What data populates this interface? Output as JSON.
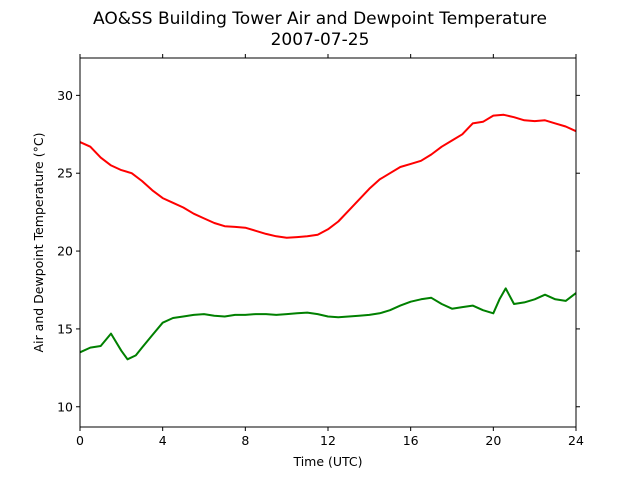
{
  "chart_data": {
    "type": "line",
    "title": "AO&SS Building Tower Air and Dewpoint Temperature",
    "subtitle": "2007-07-25",
    "xlabel": "Time (UTC)",
    "ylabel": "Air and Dewpoint Temperature (°C)",
    "xlim": [
      0,
      24
    ],
    "ylim": [
      8.7,
      32.4
    ],
    "xticks": [
      0,
      4,
      8,
      12,
      16,
      20,
      24
    ],
    "yticks": [
      10,
      15,
      20,
      25,
      30
    ],
    "grid": false,
    "legend": "none",
    "series": [
      {
        "color": "#ff0000",
        "x": [
          0,
          0.5,
          1,
          1.5,
          2,
          2.5,
          3,
          3.5,
          4,
          4.5,
          5,
          5.5,
          6,
          6.5,
          7,
          7.5,
          8,
          8.5,
          9,
          9.5,
          10,
          10.5,
          11,
          11.5,
          12,
          12.5,
          13,
          13.5,
          14,
          14.5,
          15,
          15.5,
          16,
          16.5,
          17,
          17.5,
          18,
          18.5,
          19,
          19.5,
          20,
          20.5,
          21,
          21.5,
          22,
          22.5,
          23,
          23.5,
          24
        ],
        "y": [
          27.0,
          26.7,
          26.0,
          25.5,
          25.2,
          25.0,
          24.5,
          23.9,
          23.4,
          23.1,
          22.8,
          22.4,
          22.1,
          21.8,
          21.6,
          21.55,
          21.5,
          21.3,
          21.1,
          20.95,
          20.85,
          20.9,
          20.95,
          21.05,
          21.4,
          21.9,
          22.6,
          23.3,
          24.0,
          24.6,
          25.0,
          25.4,
          25.6,
          25.8,
          26.2,
          26.7,
          27.1,
          27.5,
          28.2,
          28.3,
          28.7,
          28.75,
          28.6,
          28.4,
          28.35,
          28.4,
          28.2,
          28.0,
          27.7
        ]
      },
      {
        "color": "#008000",
        "x": [
          0,
          0.5,
          1,
          1.5,
          2,
          2.3,
          2.7,
          3,
          3.5,
          4,
          4.5,
          5,
          5.5,
          6,
          6.5,
          7,
          7.5,
          8,
          8.5,
          9,
          9.5,
          10,
          10.5,
          11,
          11.5,
          12,
          12.5,
          13,
          13.5,
          14,
          14.5,
          15,
          15.5,
          16,
          16.5,
          17,
          17.5,
          18,
          18.5,
          19,
          19.5,
          20,
          20.3,
          20.6,
          21,
          21.5,
          22,
          22.5,
          23,
          23.5,
          24
        ],
        "y": [
          13.5,
          13.8,
          13.9,
          14.7,
          13.6,
          13.05,
          13.3,
          13.8,
          14.6,
          15.4,
          15.7,
          15.8,
          15.9,
          15.95,
          15.85,
          15.8,
          15.9,
          15.9,
          15.95,
          15.95,
          15.9,
          15.95,
          16.0,
          16.05,
          15.95,
          15.8,
          15.75,
          15.8,
          15.85,
          15.9,
          16.0,
          16.2,
          16.5,
          16.75,
          16.9,
          17.0,
          16.6,
          16.3,
          16.4,
          16.5,
          16.2,
          16.0,
          16.9,
          17.6,
          16.6,
          16.7,
          16.9,
          17.2,
          16.9,
          16.8,
          17.3
        ]
      }
    ]
  }
}
